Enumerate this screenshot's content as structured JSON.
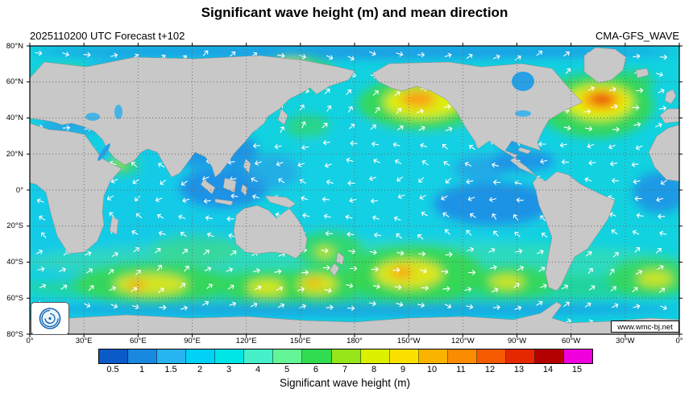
{
  "header": {
    "title": "Significant wave height (m) and mean direction",
    "subtitle_left": "2025110200 UTC Forecast t+102",
    "subtitle_right": "CMA-GFS_WAVE"
  },
  "map": {
    "lat_labels": [
      "80°N",
      "60°N",
      "40°N",
      "20°N",
      "0°",
      "20°S",
      "40°S",
      "60°S",
      "80°S"
    ],
    "lon_labels": [
      "0°",
      "30°E",
      "60°E",
      "90°E",
      "120°E",
      "150°E",
      "180°",
      "150°W",
      "120°W",
      "90°W",
      "60°W",
      "30°W",
      "0°"
    ],
    "watermark": "www.wmc-bj.net",
    "land_color": "#c8c8c8",
    "coast_color": "#8c8c8c",
    "ocean_base_color": "#12d2e0",
    "arrow_color": "#ffffff",
    "grid_color": "#666666"
  },
  "colorbar": {
    "label": "Significant wave height (m)",
    "ticks": [
      "0.5",
      "1",
      "1.5",
      "2",
      "3",
      "4",
      "5",
      "6",
      "7",
      "8",
      "9",
      "10",
      "11",
      "12",
      "13",
      "14",
      "15"
    ],
    "colors": [
      "#0a5ac8",
      "#1988e1",
      "#28b4f0",
      "#00d2f5",
      "#00e6e6",
      "#46f0c8",
      "#64f596",
      "#32dc50",
      "#96e619",
      "#dcf000",
      "#fae100",
      "#fab400",
      "#fa8c00",
      "#f55a00",
      "#e62800",
      "#b40000",
      "#f000dc"
    ]
  },
  "chart_data": {
    "type": "heatmap",
    "title": "Significant wave height (m) and mean direction",
    "subtitle": "2025110200 UTC Forecast t+102",
    "model": "CMA-GFS_WAVE",
    "x_axis": {
      "label": "longitude",
      "ticks": [
        "0°",
        "30°E",
        "60°E",
        "90°E",
        "120°E",
        "150°E",
        "180°",
        "150°W",
        "120°W",
        "90°W",
        "60°W",
        "30°W",
        "0°"
      ],
      "range_deg_east": [
        0,
        360
      ]
    },
    "y_axis": {
      "label": "latitude",
      "ticks": [
        "80°N",
        "60°N",
        "40°N",
        "20°N",
        "0°",
        "20°S",
        "40°S",
        "60°S",
        "80°S"
      ],
      "range_deg": [
        -80,
        80
      ]
    },
    "colorbar": {
      "label": "Significant wave height (m)",
      "unit": "m",
      "tick_values": [
        0.5,
        1,
        1.5,
        2,
        3,
        4,
        5,
        6,
        7,
        8,
        9,
        10,
        11,
        12,
        13,
        14,
        15
      ]
    },
    "vector_overlay": "white arrows showing mean wave direction",
    "grid": "dotted graticule every 30 deg lon / 20 deg lat",
    "notable_features": [
      {
        "region": "North Atlantic storm south of Greenland/Iceland",
        "approx_lat": 52,
        "approx_lon": -38,
        "peak_hs_m": 10
      },
      {
        "region": "Central North Pacific storm",
        "approx_lat": 48,
        "approx_lon": -145,
        "peak_hs_m": 7
      },
      {
        "region": "Bering Sea / Kamchatka",
        "approx_lat": 56,
        "approx_lon": 170,
        "peak_hs_m": 5
      },
      {
        "region": "Norwegian Sea",
        "approx_lat": 62,
        "approx_lon": 5,
        "peak_hs_m": 5
      },
      {
        "region": "Southern Indian Ocean swell band",
        "approx_lat": -50,
        "approx_lon": 65,
        "peak_hs_m": 6
      },
      {
        "region": "South of Australia",
        "approx_lat": -52,
        "approx_lon": 130,
        "peak_hs_m": 6
      },
      {
        "region": "South Pacific swell band",
        "approx_lat": -48,
        "approx_lon": -150,
        "peak_hs_m": 7
      },
      {
        "region": "Tasman Sea / New Zealand",
        "approx_lat": -38,
        "approx_lon": 165,
        "peak_hs_m": 4
      },
      {
        "region": "Tropical oceans",
        "peak_hs_m": 2,
        "note": "mostly 1-3 m, lowest (~1 m) in equatorial east Pacific, Indonesian seas and Caribbean"
      }
    ]
  }
}
